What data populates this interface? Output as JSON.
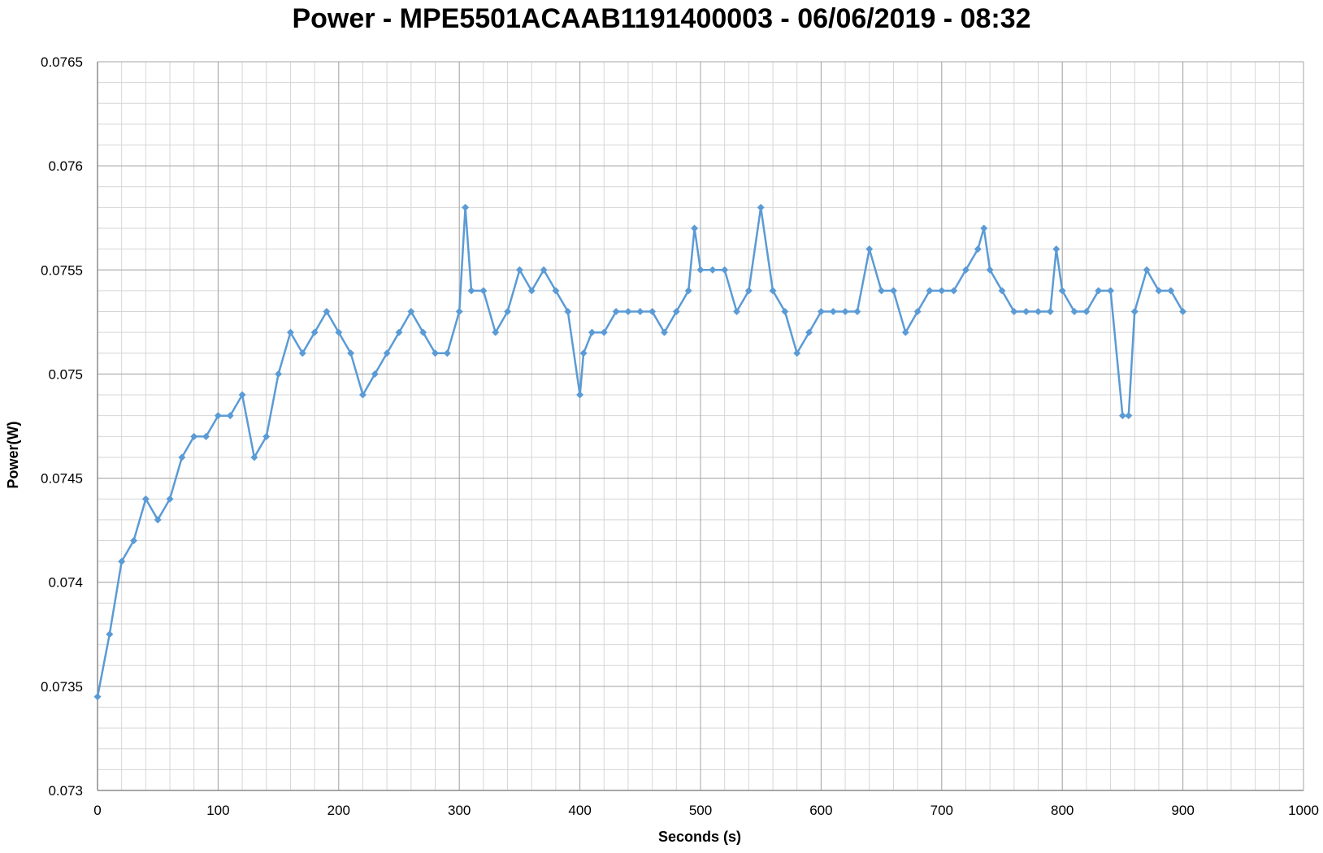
{
  "chart_data": {
    "type": "line",
    "title": "Power - MPE5501ACAAB1191400003 - 06/06/2019 - 08:32",
    "xlabel": "Seconds (s)",
    "ylabel": "Power(W)",
    "xlim": [
      0,
      1000
    ],
    "ylim": [
      0.073,
      0.0765
    ],
    "x_ticks": [
      0,
      100,
      200,
      300,
      400,
      500,
      600,
      700,
      800,
      900,
      1000
    ],
    "x_tick_labels": [
      "0",
      "100",
      "200",
      "300",
      "400",
      "500",
      "600",
      "700",
      "800",
      "900",
      "1000"
    ],
    "y_ticks": [
      0.073,
      0.0735,
      0.074,
      0.0745,
      0.075,
      0.0755,
      0.076,
      0.0765
    ],
    "y_tick_labels": [
      "0.073",
      "0.0735",
      "0.074",
      "0.0745",
      "0.075",
      "0.0755",
      "0.076",
      "0.0765"
    ],
    "grid": true,
    "marker": "diamond",
    "color": "#5B9BD5",
    "series": [
      {
        "x": [
          0,
          10,
          20,
          30,
          40,
          50,
          60,
          70,
          80,
          90,
          100,
          110,
          120,
          130,
          140,
          150,
          160,
          170,
          180,
          190,
          200,
          210,
          220,
          230,
          240,
          250,
          260,
          270,
          280,
          290,
          300,
          305,
          310,
          320,
          330,
          340,
          350,
          360,
          370,
          380,
          390,
          400,
          403,
          410,
          420,
          430,
          440,
          450,
          460,
          470,
          480,
          490,
          495,
          500,
          510,
          520,
          530,
          540,
          550,
          560,
          570,
          580,
          590,
          600,
          610,
          620,
          630,
          640,
          650,
          660,
          670,
          680,
          690,
          700,
          710,
          720,
          730,
          735,
          740,
          750,
          760,
          770,
          780,
          790,
          795,
          800,
          810,
          820,
          830,
          840,
          850,
          855,
          860,
          870,
          880,
          890,
          900
        ],
        "y": [
          0.07345,
          0.07375,
          0.0741,
          0.0742,
          0.0744,
          0.0743,
          0.0744,
          0.0746,
          0.0747,
          0.0747,
          0.0748,
          0.0748,
          0.0749,
          0.0746,
          0.0747,
          0.075,
          0.0752,
          0.0751,
          0.0752,
          0.0753,
          0.0752,
          0.0751,
          0.0749,
          0.075,
          0.0751,
          0.0752,
          0.0753,
          0.0752,
          0.0751,
          0.0751,
          0.0753,
          0.0758,
          0.0754,
          0.0754,
          0.0752,
          0.0753,
          0.0755,
          0.0754,
          0.0755,
          0.0754,
          0.0753,
          0.0749,
          0.0751,
          0.0752,
          0.0752,
          0.0753,
          0.0753,
          0.0753,
          0.0753,
          0.0752,
          0.0753,
          0.0754,
          0.0757,
          0.0755,
          0.0755,
          0.0755,
          0.0753,
          0.0754,
          0.0758,
          0.0754,
          0.0753,
          0.0751,
          0.0752,
          0.0753,
          0.0753,
          0.0753,
          0.0753,
          0.0756,
          0.0754,
          0.0754,
          0.0752,
          0.0753,
          0.0754,
          0.0754,
          0.0754,
          0.0755,
          0.0756,
          0.0757,
          0.0755,
          0.0754,
          0.0753,
          0.0753,
          0.0753,
          0.0753,
          0.0756,
          0.0754,
          0.0753,
          0.0753,
          0.0754,
          0.0754,
          0.0748,
          0.0748,
          0.0753,
          0.0755,
          0.0754,
          0.0754,
          0.0753
        ]
      }
    ]
  }
}
